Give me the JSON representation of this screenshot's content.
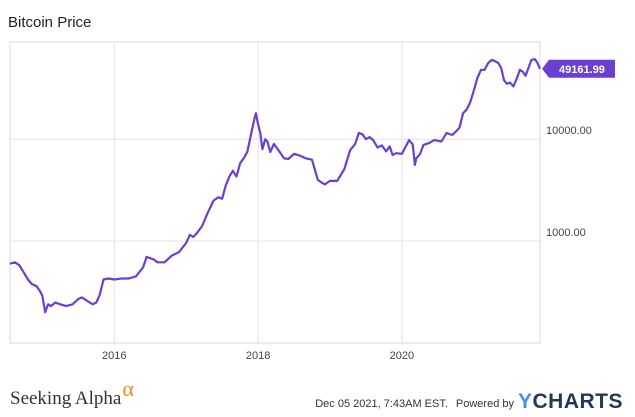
{
  "chart_data": {
    "type": "line",
    "title": "Bitcoin Price",
    "xlabel": "",
    "ylabel": "",
    "y_scale": "log",
    "xlim": [
      2014.55,
      2021.92
    ],
    "ylim": [
      100,
      90000
    ],
    "x_ticks": [
      2016,
      2018,
      2020
    ],
    "x_tick_labels": [
      "2016",
      "2018",
      "2020"
    ],
    "y_ticks": [
      1000,
      10000
    ],
    "y_tick_labels": [
      "1000.00",
      "10000.00"
    ],
    "grid": true,
    "line_color": "#6b3fd1",
    "last_value_label": "49161.99",
    "series": [
      {
        "x": [
          2014.55,
          2014.62,
          2014.68,
          2014.75,
          2014.8,
          2014.85,
          2014.92,
          2014.97,
          2015.0,
          2015.04,
          2015.08,
          2015.12,
          2015.18,
          2015.25,
          2015.33,
          2015.42,
          2015.5,
          2015.55,
          2015.62,
          2015.7,
          2015.75,
          2015.8,
          2015.85,
          2015.92,
          2016.0,
          2016.1,
          2016.2,
          2016.3,
          2016.4,
          2016.45,
          2016.5,
          2016.55,
          2016.6,
          2016.7,
          2016.8,
          2016.9,
          2017.0,
          2017.05,
          2017.1,
          2017.15,
          2017.22,
          2017.3,
          2017.38,
          2017.45,
          2017.5,
          2017.55,
          2017.6,
          2017.65,
          2017.7,
          2017.75,
          2017.8,
          2017.85,
          2017.9,
          2017.95,
          2017.97,
          2018.0,
          2018.03,
          2018.06,
          2018.1,
          2018.13,
          2018.17,
          2018.22,
          2018.3,
          2018.36,
          2018.42,
          2018.5,
          2018.58,
          2018.66,
          2018.75,
          2018.83,
          2018.87,
          2018.93,
          2019.0,
          2019.1,
          2019.2,
          2019.28,
          2019.35,
          2019.4,
          2019.45,
          2019.5,
          2019.55,
          2019.6,
          2019.66,
          2019.72,
          2019.78,
          2019.83,
          2019.87,
          2019.92,
          2020.0,
          2020.1,
          2020.15,
          2020.18,
          2020.2,
          2020.25,
          2020.3,
          2020.38,
          2020.45,
          2020.55,
          2020.62,
          2020.7,
          2020.75,
          2020.8,
          2020.85,
          2020.9,
          2020.95,
          2021.0,
          2021.05,
          2021.1,
          2021.15,
          2021.2,
          2021.25,
          2021.3,
          2021.34,
          2021.38,
          2021.42,
          2021.46,
          2021.5,
          2021.55,
          2021.6,
          2021.64,
          2021.68,
          2021.72,
          2021.75,
          2021.8,
          2021.85,
          2021.88,
          2021.92
        ],
        "y": [
          600,
          620,
          580,
          480,
          420,
          380,
          360,
          320,
          290,
          200,
          240,
          230,
          250,
          240,
          230,
          240,
          270,
          280,
          260,
          240,
          250,
          300,
          420,
          430,
          420,
          430,
          430,
          450,
          550,
          700,
          680,
          660,
          620,
          620,
          720,
          780,
          960,
          1150,
          1100,
          1200,
          1400,
          1900,
          2500,
          2700,
          2600,
          3500,
          4300,
          4900,
          4300,
          5800,
          6500,
          7500,
          11000,
          16000,
          18000,
          14000,
          11500,
          8000,
          10000,
          9500,
          7500,
          9000,
          7500,
          6500,
          6400,
          7200,
          6900,
          6500,
          6300,
          4000,
          3800,
          3600,
          3900,
          3900,
          5100,
          7800,
          9000,
          11500,
          11200,
          10000,
          10500,
          9800,
          8300,
          8700,
          7600,
          8500,
          7000,
          7300,
          7200,
          9800,
          8900,
          5600,
          6500,
          7100,
          8800,
          9200,
          9800,
          9500,
          11500,
          11000,
          11900,
          13000,
          18000,
          19500,
          23000,
          30000,
          40000,
          48000,
          48000,
          56000,
          60000,
          58000,
          56000,
          50000,
          38000,
          35000,
          36000,
          33000,
          40000,
          48000,
          46000,
          42000,
          48000,
          60000,
          61000,
          57000,
          49162
        ]
      }
    ]
  },
  "footer": {
    "brand_left": "Seeking Alpha",
    "brand_alpha": "α",
    "timestamp": "Dec 05 2021, 7:43AM EST.",
    "powered_by": "Powered by",
    "brand_right": "CHARTS",
    "brand_right_y": "Y"
  }
}
